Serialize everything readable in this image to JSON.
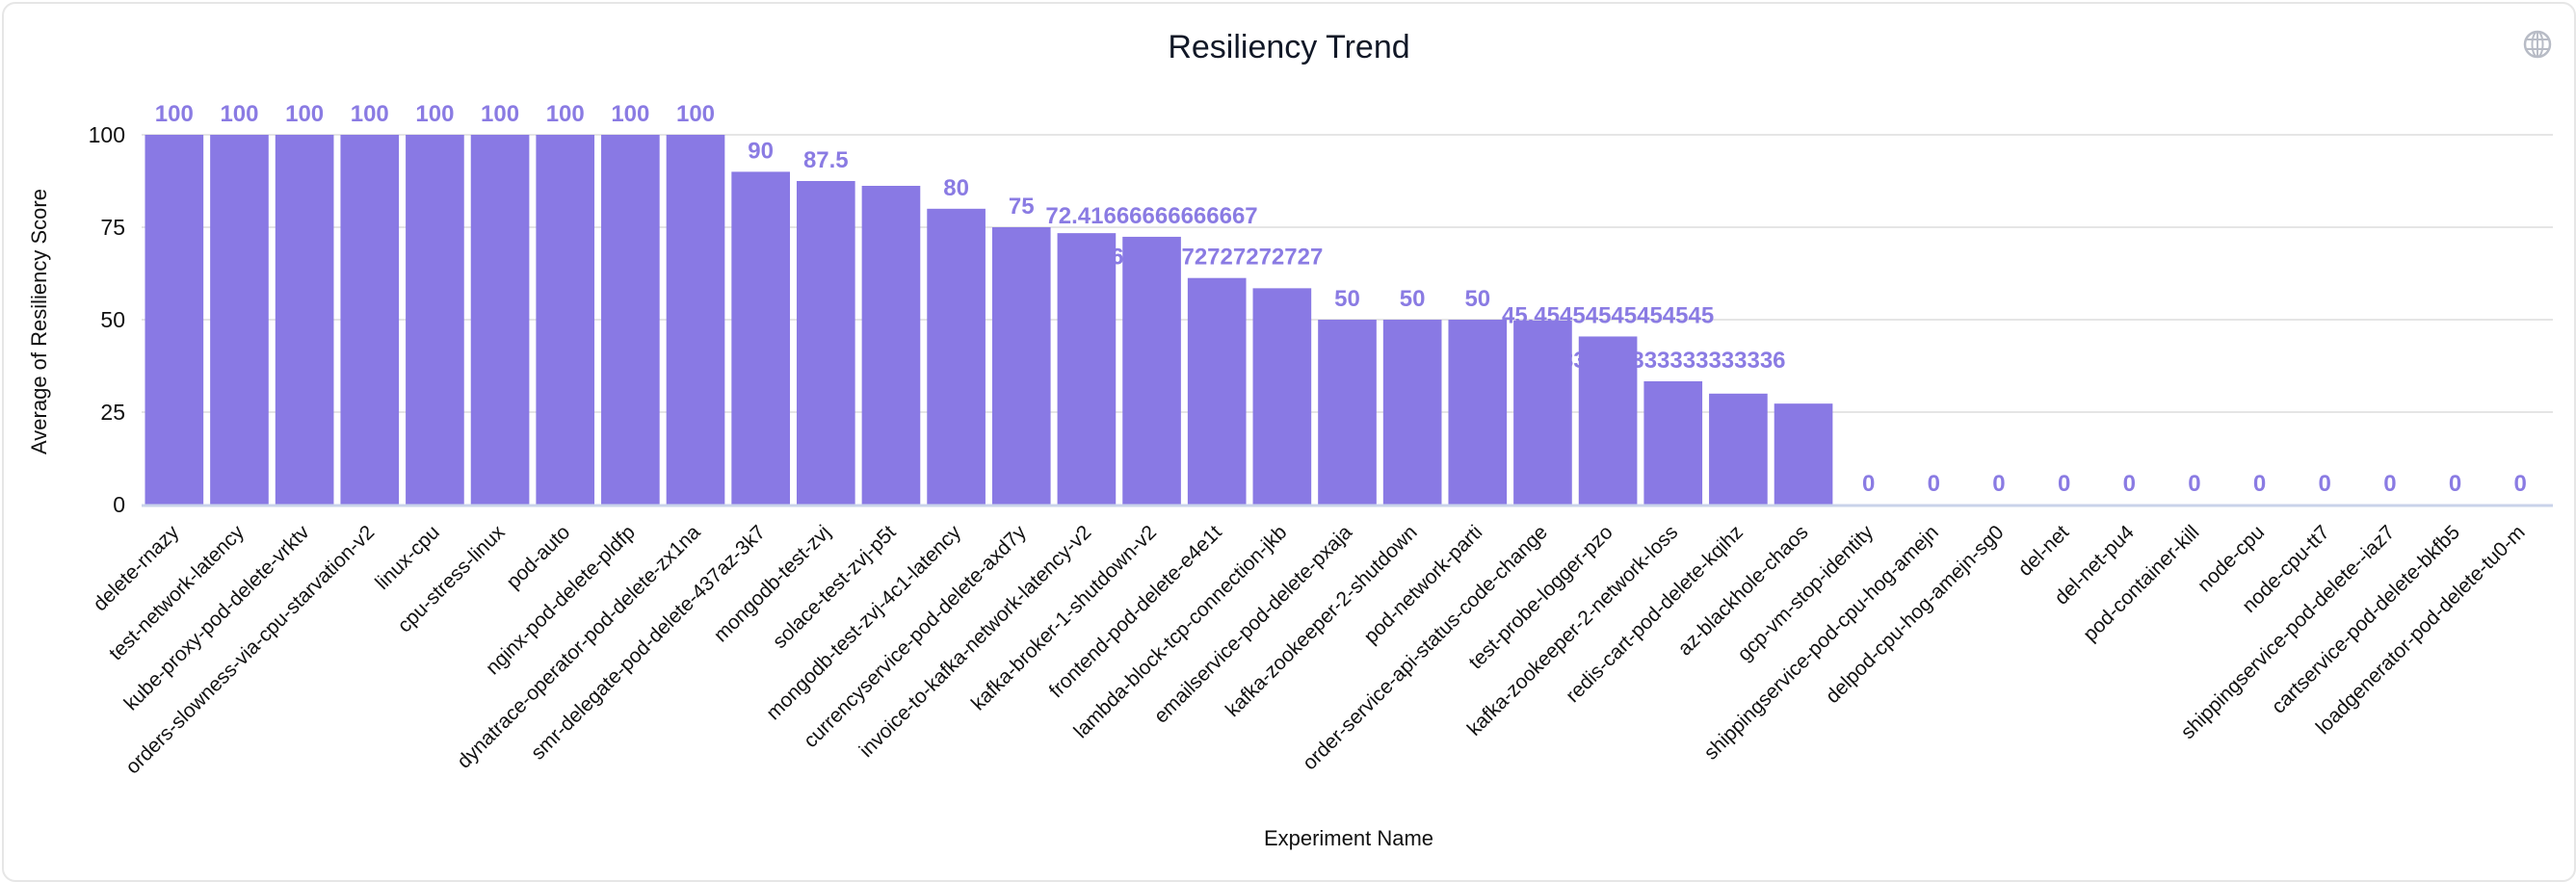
{
  "colors": {
    "bar": "#8979e4",
    "data_label": "#8a7be3",
    "grid": "#e5e5e5",
    "baseline": "#c9d3ea",
    "icon": "#b8bcc6"
  },
  "header": {
    "title": "Resiliency Trend",
    "icon": "globe-icon"
  },
  "chart_data": {
    "type": "bar",
    "title": "Resiliency Trend",
    "xlabel": "Experiment Name",
    "ylabel": "Average of Resiliency Score",
    "ylim": [
      0,
      100
    ],
    "yticks": [
      "0",
      "25",
      "50",
      "75",
      "100"
    ],
    "grid": true,
    "categories": [
      "delete-rnazy",
      "test-network-latency",
      "kube-proxy-pod-delete-vrktv",
      "orders-slowness-via-cpu-starvation-v2",
      "linux-cpu",
      "cpu-stress-linux",
      "pod-auto",
      "nginx-pod-delete-pldfp",
      "dynatrace-operator-pod-delete-zx1na",
      "smr-delegate-pod-delete-437az-3k7",
      "mongodb-test-zvj",
      "solace-test-zvj-p5t",
      "mongodb-test-zvj-4c1-latency",
      "currencyservice-pod-delete-axd7y",
      "invoice-to-kafka-network-latency-v2",
      "kafka-broker-1-shutdown-v2",
      "frontend-pod-delete-e4e1t",
      "lambda-block-tcp-connection-jkb",
      "emailservice-pod-delete-pxaja",
      "kafka-zookeeper-2-shutdown",
      "pod-network-parti",
      "order-service-api-status-code-change",
      "test-probe-logger-pzo",
      "kafka-zookeeper-2-network-loss",
      "redis-cart-pod-delete-kqihz",
      "az-blackhole-chaos",
      "gcp-vm-stop-identity",
      "shippingservice-pod-cpu-hog-amejn",
      "delpod-cpu-hog-amejn-sg0",
      "del-net",
      "del-net-pu4",
      "pod-container-kill",
      "node-cpu",
      "node-cpu-tt7",
      "shippingservice-pod-delete--iaz7",
      "cartservice-pod-delete-bkfb5",
      "loadgenerator-pod-delete-tu0-m"
    ],
    "values": [
      100,
      100,
      100,
      100,
      100,
      100,
      100,
      100,
      100,
      90,
      87.5,
      86.2,
      80,
      75,
      73.4,
      72.41666666666667,
      61.27272727272727,
      58.5,
      50,
      50,
      50,
      49.8,
      45.45454545454545,
      33.333333333333336,
      30,
      27.3,
      0,
      0,
      0,
      0,
      0,
      0,
      0,
      0,
      0,
      0,
      0
    ],
    "data_labels": [
      "100",
      "100",
      "100",
      "100",
      "100",
      "100",
      "100",
      "100",
      "100",
      "90",
      "87.5",
      "",
      "80",
      "75",
      "",
      "72.41666666666667",
      "61.27272727272727",
      "",
      "50",
      "50",
      "50",
      "",
      "45.45454545454545",
      "33.333333333333336",
      "",
      "",
      "0",
      "0",
      "0",
      "0",
      "0",
      "0",
      "0",
      "0",
      "0",
      "0",
      "0"
    ]
  }
}
